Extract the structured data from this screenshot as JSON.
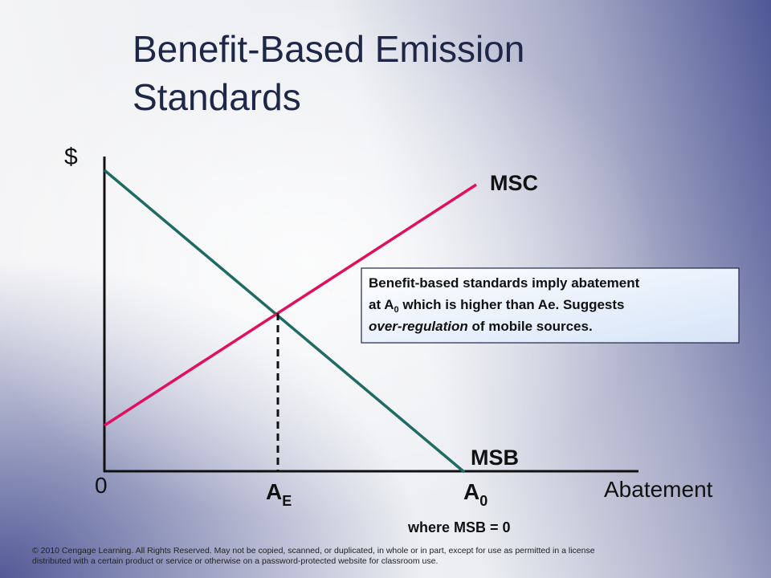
{
  "title": {
    "line1": "Benefit-Based Emission",
    "line2": "Standards"
  },
  "axes": {
    "y_label": "$",
    "x_label": "Abatement",
    "origin": "0"
  },
  "curves": {
    "msc": "MSC",
    "msb": "MSB"
  },
  "points": {
    "ae": {
      "main": "A",
      "sub": "E"
    },
    "a0": {
      "main": "A",
      "sub": "0"
    },
    "a0_note": "where MSB = 0"
  },
  "note": {
    "line1": "Benefit-based standards imply abatement",
    "line2": {
      "before": "at A",
      "sub": "0",
      "after": " which is higher than Ae. Suggests"
    },
    "line3": {
      "italic": "over-regulation",
      "after": " of mobile sources."
    }
  },
  "footer": {
    "line1": "© 2010 Cengage Learning. All Rights Reserved. May not be copied, scanned, or duplicated, in whole or in part, except for use as permitted in a license",
    "line2": "distributed with a certain product or service or otherwise on a password-protected website for classroom use."
  }
}
